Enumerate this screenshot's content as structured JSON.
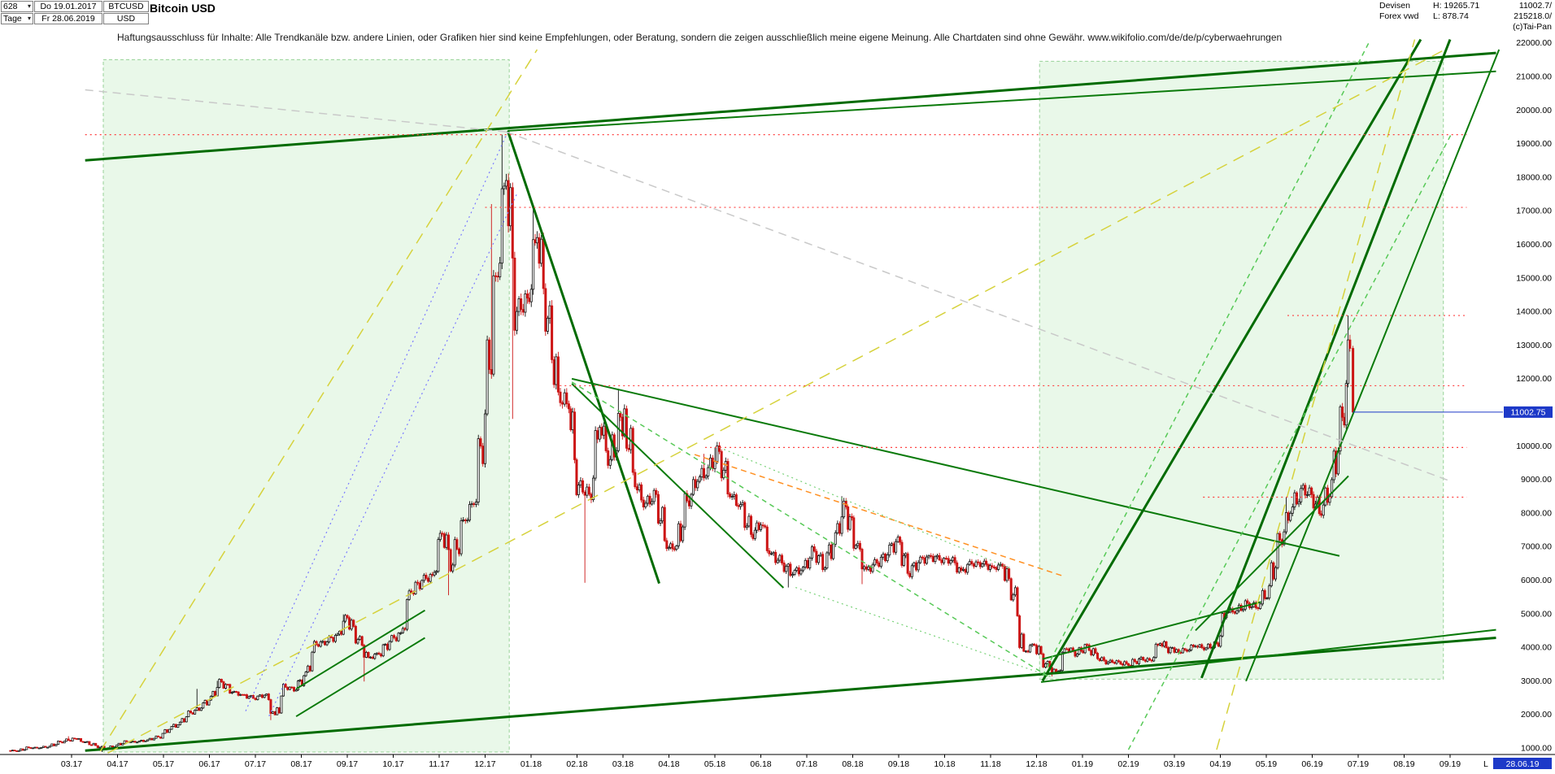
{
  "header": {
    "bars_count": "628",
    "dropdown_arrow": "▾",
    "start_day_label": "Do 19.01.2017",
    "symbol": "BTCUSD",
    "timeframe": "Tage",
    "end_day_label": "Fr 28.06.2019",
    "currency": "USD",
    "title": "Bitcoin USD",
    "disclaimer": "Haftungsausschluss für Inhalte: Alle Trendkanäle bzw. andere Linien, oder Grafiken hier sind keine Empfehlungen, oder Beratung, sondern die zeigen ausschließlich meine eigene Meinung. Alle Chartdaten sind ohne Gewähr.  www.wikifolio.com/de/de/p/cyberwaehrungen",
    "right": {
      "source_line1": "Devisen",
      "high_label": "H: 19265.71",
      "quote1": "11002.7/",
      "source_line2": "Forex vwd",
      "low_label": "L: 878.74",
      "quote2": "215218.0/",
      "copyright": "(c)Tai-Pan"
    }
  },
  "footer": {
    "last_label": "L",
    "last_date": "28.06.19"
  },
  "chart_data": {
    "type": "candlestick",
    "title": "Bitcoin USD",
    "timeframe": "daily",
    "last_price": 11002.75,
    "period_high": 19265.71,
    "period_low": 878.74,
    "y_axis": {
      "min": 1000,
      "max": 22000,
      "step": 1000
    },
    "y_ticks": [
      22000,
      21000,
      20000,
      19000,
      18000,
      17000,
      16000,
      15000,
      14000,
      13000,
      12000,
      11000,
      10000,
      9000,
      8000,
      7000,
      6000,
      5000,
      4000,
      3000,
      2000,
      1000
    ],
    "x_ticks": [
      "03.17",
      "04.17",
      "05.17",
      "06.17",
      "07.17",
      "08.17",
      "09.17",
      "10.17",
      "11.17",
      "12.17",
      "01.18",
      "02.18",
      "03.18",
      "04.18",
      "05.18",
      "06.18",
      "07.18",
      "08.18",
      "09.18",
      "10.18",
      "11.18",
      "12.18",
      "01.19",
      "02.19",
      "03.19",
      "04.19",
      "05.19",
      "06.19",
      "07.19",
      "08.19",
      "09.19"
    ],
    "series_columns": [
      "date",
      "close",
      "high",
      "low"
    ],
    "series": [
      [
        "2017-01-20",
        924
      ],
      [
        "2017-01-27",
        921
      ],
      [
        "2017-02-03",
        1012
      ],
      [
        "2017-02-10",
        1000
      ],
      [
        "2017-02-17",
        1055
      ],
      [
        "2017-02-24",
        1180
      ],
      [
        "2017-03-03",
        1280,
        1350
      ],
      [
        "2017-03-10",
        1180
      ],
      [
        "2017-03-17",
        1070
      ],
      [
        "2017-03-24",
        965,
        null,
        878.74
      ],
      [
        "2017-03-31",
        1090
      ],
      [
        "2017-04-07",
        1190
      ],
      [
        "2017-04-14",
        1175
      ],
      [
        "2017-04-21",
        1245
      ],
      [
        "2017-04-28",
        1330
      ],
      [
        "2017-05-05",
        1555
      ],
      [
        "2017-05-12",
        1770
      ],
      [
        "2017-05-19",
        2050
      ],
      [
        "2017-05-26",
        2190,
        2760
      ],
      [
        "2017-06-02",
        2540
      ],
      [
        "2017-06-09",
        2970,
        3000
      ],
      [
        "2017-06-16",
        2660
      ],
      [
        "2017-06-23",
        2590
      ],
      [
        "2017-06-30",
        2480
      ],
      [
        "2017-07-07",
        2570
      ],
      [
        "2017-07-14",
        1990,
        null,
        1830
      ],
      [
        "2017-07-21",
        2810
      ],
      [
        "2017-07-28",
        2730
      ],
      [
        "2017-08-04",
        3260
      ],
      [
        "2017-08-11",
        4080
      ],
      [
        "2017-08-18",
        4160
      ],
      [
        "2017-08-25",
        4390
      ],
      [
        "2017-09-01",
        4880,
        4980
      ],
      [
        "2017-09-08",
        4230
      ],
      [
        "2017-09-15",
        3700,
        null,
        2980
      ],
      [
        "2017-09-22",
        3790
      ],
      [
        "2017-09-29",
        4170
      ],
      [
        "2017-10-06",
        4430
      ],
      [
        "2017-10-13",
        5640
      ],
      [
        "2017-10-20",
        5990
      ],
      [
        "2017-10-27",
        6150
      ],
      [
        "2017-11-03",
        7380
      ],
      [
        "2017-11-10",
        6450,
        null,
        5550
      ],
      [
        "2017-11-17",
        7790
      ],
      [
        "2017-11-24",
        8250
      ],
      [
        "2017-12-01",
        10950
      ],
      [
        "2017-12-08",
        15050,
        17200
      ],
      [
        "2017-12-15",
        17900,
        19265.71
      ],
      [
        "2017-12-22",
        14000,
        null,
        10800
      ],
      [
        "2017-12-29",
        14400
      ],
      [
        "2018-01-05",
        16200,
        17180
      ],
      [
        "2018-01-12",
        13800
      ],
      [
        "2018-01-19",
        11600
      ],
      [
        "2018-01-26",
        11100
      ],
      [
        "2018-02-02",
        8830
      ],
      [
        "2018-02-09",
        8560,
        null,
        5920
      ],
      [
        "2018-02-16",
        10550
      ],
      [
        "2018-02-23",
        9590
      ],
      [
        "2018-03-02",
        11100,
        11700
      ],
      [
        "2018-03-09",
        8780
      ],
      [
        "2018-03-16",
        8290
      ],
      [
        "2018-03-23",
        8550
      ],
      [
        "2018-03-30",
        6940
      ],
      [
        "2018-04-06",
        7020
      ],
      [
        "2018-04-13",
        8360
      ],
      [
        "2018-04-20",
        8940
      ],
      [
        "2018-04-27",
        9350,
        9760
      ],
      [
        "2018-05-04",
        9830,
        9950
      ],
      [
        "2018-05-11",
        8480
      ],
      [
        "2018-05-18",
        8250
      ],
      [
        "2018-05-25",
        7360
      ],
      [
        "2018-06-01",
        7640
      ],
      [
        "2018-06-08",
        6790
      ],
      [
        "2018-06-15",
        6510
      ],
      [
        "2018-06-22",
        6170,
        null,
        5780
      ],
      [
        "2018-06-29",
        6390
      ],
      [
        "2018-07-06",
        6860
      ],
      [
        "2018-07-13",
        6360
      ],
      [
        "2018-07-20",
        7410
      ],
      [
        "2018-07-27",
        8180,
        8500
      ],
      [
        "2018-08-03",
        7030
      ],
      [
        "2018-08-10",
        6320,
        null,
        5880
      ],
      [
        "2018-08-17",
        6510
      ],
      [
        "2018-08-24",
        6750
      ],
      [
        "2018-08-31",
        7280
      ],
      [
        "2018-09-07",
        6200
      ],
      [
        "2018-09-14",
        6520
      ],
      [
        "2018-09-21",
        6730
      ],
      [
        "2018-09-28",
        6600
      ],
      [
        "2018-10-05",
        6580
      ],
      [
        "2018-10-12",
        6290
      ],
      [
        "2018-10-19",
        6480
      ],
      [
        "2018-10-26",
        6480
      ],
      [
        "2018-11-02",
        6390
      ],
      [
        "2018-11-09",
        6410
      ],
      [
        "2018-11-16",
        5560
      ],
      [
        "2018-11-23",
        3880
      ],
      [
        "2018-11-30",
        4060
      ],
      [
        "2018-12-07",
        3510
      ],
      [
        "2018-12-14",
        3240,
        null,
        3130
      ],
      [
        "2018-12-21",
        3950
      ],
      [
        "2018-12-28",
        3800
      ],
      [
        "2019-01-04",
        4070
      ],
      [
        "2019-01-11",
        3660
      ],
      [
        "2019-01-18",
        3560
      ],
      [
        "2019-01-25",
        3570
      ],
      [
        "2019-02-01",
        3460
      ],
      [
        "2019-02-08",
        3650
      ],
      [
        "2019-02-15",
        3620
      ],
      [
        "2019-02-22",
        4110
      ],
      [
        "2019-03-01",
        3850
      ],
      [
        "2019-03-08",
        3920
      ],
      [
        "2019-03-15",
        4030
      ],
      [
        "2019-03-22",
        3980
      ],
      [
        "2019-03-29",
        4110
      ],
      [
        "2019-04-05",
        5050
      ],
      [
        "2019-04-12",
        5090
      ],
      [
        "2019-04-19",
        5310
      ],
      [
        "2019-04-26",
        5150
      ],
      [
        "2019-05-03",
        5830
      ],
      [
        "2019-05-10",
        7200
      ],
      [
        "2019-05-17",
        7990,
        8470
      ],
      [
        "2019-05-24",
        8730
      ],
      [
        "2019-05-31",
        8550
      ],
      [
        "2019-06-07",
        7930
      ],
      [
        "2019-06-14",
        8990
      ],
      [
        "2019-06-21",
        10850
      ],
      [
        "2019-06-26",
        12900,
        13880
      ],
      [
        "2019-06-28",
        11002.75
      ]
    ],
    "colors": {
      "candle_up": "#111111",
      "candle_down": "#cc1414",
      "tag_bg": "#1d39c8",
      "axis_text": "#000000",
      "region_fill": "rgba(120,210,120,0.16)",
      "region_stroke": "rgba(40,160,40,0.45)"
    },
    "overlays": {
      "styles": {
        "channel-major": {
          "color": "#006b00",
          "width": 3,
          "dash": ""
        },
        "trend-minor": {
          "color": "#0a7a0a",
          "width": 2,
          "dash": ""
        },
        "support-dashed": {
          "color": "#57c957",
          "width": 1.5,
          "dash": "6 5"
        },
        "fan-dotted-green": {
          "color": "#79d279",
          "width": 1.2,
          "dash": "2 4"
        },
        "yellow-longdash": {
          "color": "#d6d23c",
          "width": 1.5,
          "dash": "14 9"
        },
        "resistance-dotted-red": {
          "color": "#ff4040",
          "width": 1.2,
          "dash": "2 4"
        },
        "orange-dashed": {
          "color": "#ff9022",
          "width": 1.5,
          "dash": "7 5"
        },
        "blue-dotted": {
          "color": "#7b7bff",
          "width": 1.2,
          "dash": "2 4"
        },
        "gray-dashed": {
          "color": "#c9c9c9",
          "width": 1.5,
          "dash": "10 7"
        }
      },
      "trendlines": [
        {
          "p1": [
            "2017-03-10",
            18500
          ],
          "p2": [
            "2019-10-01",
            21700
          ],
          "style": "channel-major"
        },
        {
          "p1": [
            "2017-12-16",
            19380
          ],
          "p2": [
            "2019-10-01",
            21150
          ],
          "style": "trend-minor"
        },
        {
          "p1": [
            "2017-03-10",
            920
          ],
          "p2": [
            "2019-10-01",
            4280
          ],
          "style": "channel-major"
        },
        {
          "p1": [
            "2018-12-04",
            2965
          ],
          "p2": [
            "2019-10-01",
            4520
          ],
          "style": "trend-minor"
        },
        {
          "p1": [
            "2017-12-16",
            19380
          ],
          "p2": [
            "2018-03-25",
            5900
          ],
          "style": "channel-major"
        },
        {
          "p1": [
            "2018-01-28",
            11995
          ],
          "p2": [
            "2019-06-19",
            6720
          ],
          "style": "trend-minor"
        },
        {
          "p1": [
            "2018-01-28",
            11850
          ],
          "p2": [
            "2018-06-16",
            5770
          ],
          "style": "trend-minor"
        },
        {
          "p1": [
            "2018-12-05",
            3000
          ],
          "p2": [
            "2019-08-12",
            22100
          ],
          "style": "channel-major"
        },
        {
          "p1": [
            "2019-03-19",
            3085
          ],
          "p2": [
            "2019-09-01",
            22100
          ],
          "style": "channel-major"
        },
        {
          "p1": [
            "2019-04-18",
            2990
          ],
          "p2": [
            "2019-10-03",
            21800
          ],
          "style": "trend-minor"
        },
        {
          "p1": [
            "2019-03-15",
            4500
          ],
          "p2": [
            "2019-06-25",
            9100
          ],
          "style": "trend-minor"
        },
        {
          "p1": [
            "2018-12-05",
            3650
          ],
          "p2": [
            "2019-04-28",
            5350
          ],
          "style": "trend-minor"
        },
        {
          "p1": [
            "2017-07-28",
            2760
          ],
          "p2": [
            "2017-10-22",
            5100
          ],
          "style": "trend-minor"
        },
        {
          "p1": [
            "2017-07-28",
            1940
          ],
          "p2": [
            "2017-10-22",
            4280
          ],
          "style": "trend-minor"
        },
        {
          "p1": [
            "2018-01-28",
            11900
          ],
          "p2": [
            "2018-12-10",
            3100
          ],
          "style": "support-dashed"
        },
        {
          "p1": [
            "2018-12-05",
            3150
          ],
          "p2": [
            "2019-07-08",
            22000
          ],
          "style": "support-dashed"
        },
        {
          "p1": [
            "2019-02-01",
            950
          ],
          "p2": [
            "2019-09-02",
            19300
          ],
          "style": "support-dashed"
        },
        {
          "p1": [
            "2017-03-20",
            900
          ],
          "p2": [
            "2018-01-05",
            21800
          ],
          "style": "yellow-longdash"
        },
        {
          "p1": [
            "2017-03-25",
            850
          ],
          "p2": [
            "2019-08-28",
            21800
          ],
          "style": "yellow-longdash"
        },
        {
          "p1": [
            "2019-03-29",
            950
          ],
          "p2": [
            "2019-08-08",
            22100
          ],
          "style": "yellow-longdash"
        },
        {
          "p1": [
            "2018-04-18",
            9740
          ],
          "p2": [
            "2018-12-20",
            6100
          ],
          "style": "orange-dashed"
        },
        {
          "p1": [
            "2017-06-25",
            2100
          ],
          "p2": [
            "2017-12-16",
            19350
          ],
          "style": "blue-dotted"
        },
        {
          "p1": [
            "2017-07-10",
            1950
          ],
          "p2": [
            "2017-12-22",
            17500
          ],
          "style": "blue-dotted"
        },
        {
          "p1": [
            "2017-03-10",
            20600
          ],
          "p2": [
            "2017-12-15",
            19350
          ],
          "style": "gray-dashed"
        },
        {
          "p1": [
            "2017-12-15",
            19350
          ],
          "p2": [
            "2019-09-01",
            8950
          ],
          "style": "gray-dashed"
        },
        {
          "p1": [
            "2018-05-04",
            9950
          ],
          "p2": [
            "2018-11-14",
            6350
          ],
          "style": "fan-dotted-green"
        },
        {
          "p1": [
            "2018-06-24",
            5780
          ],
          "p2": [
            "2018-12-12",
            3100
          ],
          "style": "fan-dotted-green"
        }
      ],
      "levels": [
        {
          "price": 19265.71,
          "from": "2017-03-10",
          "to": "2019-09-12",
          "style": "resistance-dotted-red"
        },
        {
          "price": 17100,
          "from": "2017-12-01",
          "to": "2019-09-12",
          "style": "resistance-dotted-red"
        },
        {
          "price": 11788,
          "from": "2018-01-20",
          "to": "2019-09-12",
          "style": "resistance-dotted-red"
        },
        {
          "price": 9950,
          "from": "2018-04-25",
          "to": "2019-09-12",
          "style": "resistance-dotted-red"
        },
        {
          "price": 13880,
          "from": "2019-05-15",
          "to": "2019-09-12",
          "style": "resistance-dotted-red"
        },
        {
          "price": 8470,
          "from": "2019-03-20",
          "to": "2019-09-12",
          "style": "resistance-dotted-red"
        }
      ],
      "regions": [
        {
          "x1": "2017-03-22",
          "x2": "2017-12-17",
          "y1": 880,
          "y2": 21500
        },
        {
          "x1": "2018-12-03",
          "x2": "2019-08-27",
          "y1": 3050,
          "y2": 21450
        }
      ]
    }
  }
}
